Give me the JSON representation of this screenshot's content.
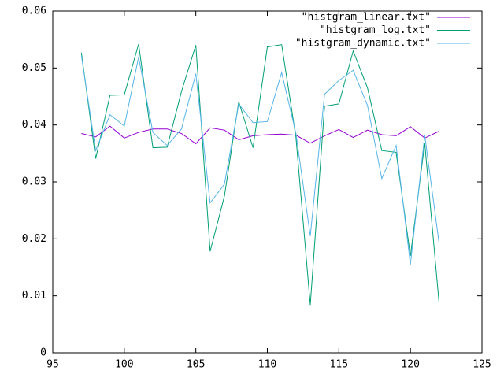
{
  "chart_data": {
    "type": "line",
    "x": [
      97,
      98,
      99,
      100,
      101,
      102,
      103,
      104,
      105,
      106,
      107,
      108,
      109,
      110,
      111,
      112,
      113,
      114,
      115,
      116,
      117,
      118,
      119,
      120,
      121,
      122
    ],
    "series": [
      {
        "name": "\"histgram_linear.txt\"",
        "color": "#9400d3",
        "values": [
          0.0385,
          0.0379,
          0.0398,
          0.0377,
          0.0387,
          0.0393,
          0.0393,
          0.0385,
          0.0367,
          0.0395,
          0.0391,
          0.0374,
          0.0381,
          0.0383,
          0.0384,
          0.0382,
          0.0368,
          0.0381,
          0.0392,
          0.0378,
          0.0391,
          0.0383,
          0.0381,
          0.0397,
          0.0377,
          0.0389
        ]
      },
      {
        "name": "\"histgram_log.txt\"",
        "color": "#009e73",
        "values": [
          0.0527,
          0.0341,
          0.0452,
          0.0453,
          0.0542,
          0.036,
          0.0361,
          0.0459,
          0.054,
          0.0178,
          0.0275,
          0.0441,
          0.036,
          0.0537,
          0.0541,
          0.0378,
          0.0084,
          0.0433,
          0.0437,
          0.053,
          0.0465,
          0.0355,
          0.0352,
          0.017,
          0.0368,
          0.0088
        ]
      },
      {
        "name": "\"histgram_dynamic.txt\"",
        "color": "#56b4e9",
        "values": [
          0.0522,
          0.0355,
          0.0418,
          0.0398,
          0.0519,
          0.0387,
          0.0364,
          0.0393,
          0.049,
          0.0263,
          0.0296,
          0.0437,
          0.0404,
          0.0406,
          0.0492,
          0.0385,
          0.0205,
          0.0454,
          0.0478,
          0.0496,
          0.0434,
          0.0306,
          0.0364,
          0.0155,
          0.0382,
          0.0193
        ]
      }
    ],
    "xlim": [
      95,
      125
    ],
    "xticks": [
      95,
      100,
      105,
      110,
      115,
      120,
      125
    ],
    "ylim": [
      0,
      0.06
    ],
    "yticks": [
      0,
      0.01,
      0.02,
      0.03,
      0.04,
      0.05,
      0.06
    ],
    "legend": "top right",
    "grid": false
  }
}
